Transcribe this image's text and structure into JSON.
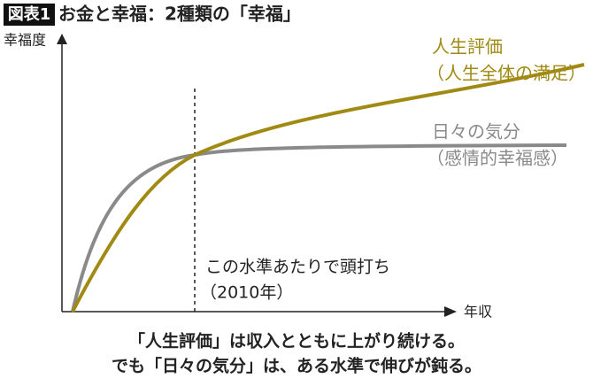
{
  "header": {
    "label": "図表1",
    "title": "お金と幸福：2種類の「幸福」"
  },
  "axes": {
    "y_label": "幸福度",
    "x_label": "年収"
  },
  "curves": [
    {
      "name": "人生評価",
      "note": "（人生全体の満足）"
    },
    {
      "name": "日々の気分",
      "note": "（感情的幸福感）"
    }
  ],
  "annotation": {
    "text": "この水準あたりで頭打ち",
    "year": "（2010年）"
  },
  "caption": [
    "「人生評価」は収入とともに上がり続ける。",
    "でも「日々の気分」は、ある水準で伸びが鈍る。"
  ]
}
